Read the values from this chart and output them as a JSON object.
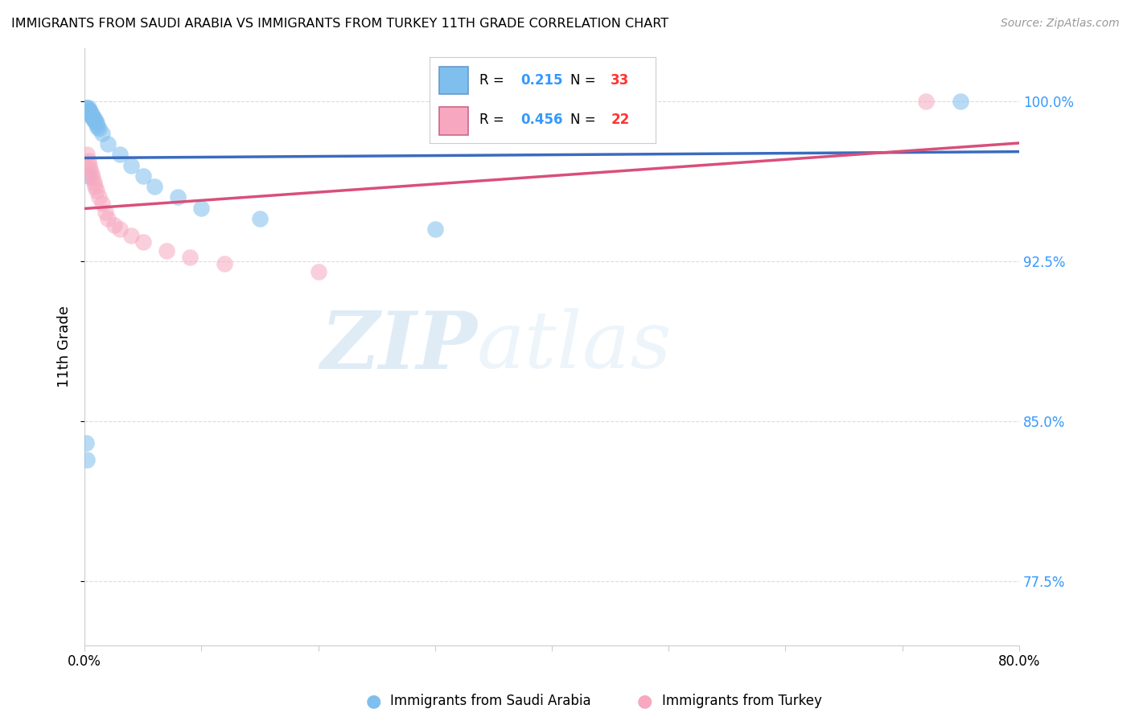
{
  "title": "IMMIGRANTS FROM SAUDI ARABIA VS IMMIGRANTS FROM TURKEY 11TH GRADE CORRELATION CHART",
  "source": "Source: ZipAtlas.com",
  "ylabel": "11th Grade",
  "xlim": [
    0.0,
    0.8
  ],
  "ylim": [
    0.745,
    1.025
  ],
  "background_color": "#ffffff",
  "grid_color": "#cccccc",
  "saudi_color": "#7fbfee",
  "saudi_line_color": "#3a6bbf",
  "turkey_color": "#f7a8c0",
  "turkey_line_color": "#d94f7a",
  "saudi_R": 0.215,
  "saudi_N": 33,
  "turkey_R": 0.456,
  "turkey_N": 22,
  "saudi_x": [
    0.001,
    0.002,
    0.002,
    0.003,
    0.003,
    0.003,
    0.004,
    0.004,
    0.005,
    0.005,
    0.006,
    0.006,
    0.007,
    0.007,
    0.008,
    0.008,
    0.009,
    0.01,
    0.01,
    0.011,
    0.012,
    0.013,
    0.015,
    0.018,
    0.02,
    0.03,
    0.04,
    0.05,
    0.06,
    0.08,
    0.1,
    0.3,
    0.75
  ],
  "saudi_y": [
    0.84,
    0.998,
    0.997,
    0.996,
    0.995,
    0.994,
    0.995,
    0.994,
    0.993,
    0.993,
    0.993,
    0.992,
    0.992,
    0.991,
    0.991,
    0.99,
    0.99,
    0.989,
    0.989,
    0.988,
    0.987,
    0.986,
    0.97,
    0.965,
    0.96,
    0.958,
    0.955,
    0.952,
    0.95,
    0.945,
    0.94,
    0.935,
    1.0
  ],
  "turkey_x": [
    0.002,
    0.003,
    0.004,
    0.005,
    0.005,
    0.006,
    0.007,
    0.008,
    0.009,
    0.01,
    0.012,
    0.015,
    0.018,
    0.02,
    0.025,
    0.03,
    0.04,
    0.05,
    0.07,
    0.09,
    0.12,
    0.72
  ],
  "turkey_y": [
    0.962,
    0.958,
    0.956,
    0.972,
    0.968,
    0.965,
    0.962,
    0.96,
    0.958,
    0.956,
    0.952,
    0.948,
    0.945,
    0.942,
    0.94,
    0.938,
    0.935,
    0.932,
    0.928,
    0.925,
    0.922,
    1.0
  ],
  "right_yticks": [
    1.0,
    0.925,
    0.85,
    0.775
  ],
  "right_yticklabels": [
    "100.0%",
    "92.5%",
    "85.0%",
    "77.5%"
  ],
  "xticks": [
    0.0,
    0.1,
    0.2,
    0.3,
    0.4,
    0.5,
    0.6,
    0.7,
    0.8
  ],
  "xticklabels": [
    "0.0%",
    "",
    "",
    "",
    "",
    "",
    "",
    "",
    "80.0%"
  ],
  "legend_label_saudi": "Immigrants from Saudi Arabia",
  "legend_label_turkey": "Immigrants from Turkey",
  "watermark_zip": "ZIP",
  "watermark_atlas": "atlas"
}
